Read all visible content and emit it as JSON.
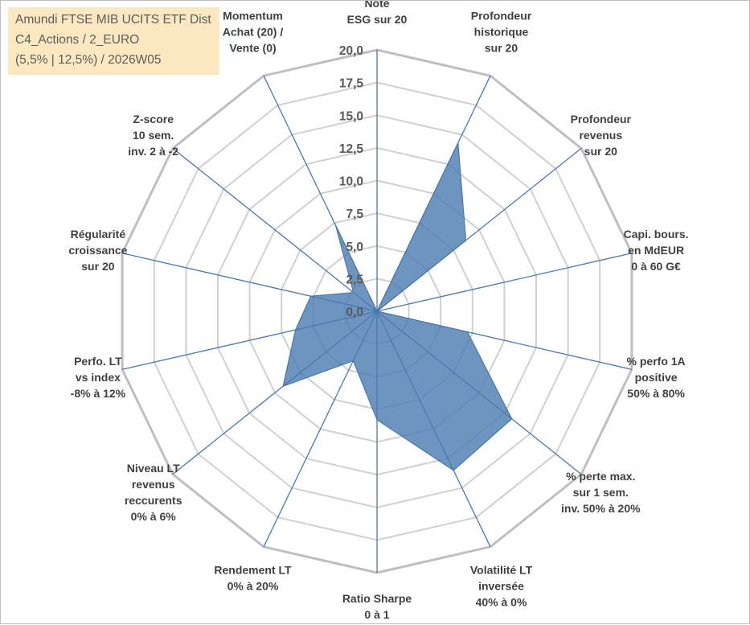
{
  "title_lines": [
    "Amundi FTSE MIB UCITS ETF Dist",
    "C4_Actions / 2_EURO",
    "(5,5% | 12,5%) / 2026W05"
  ],
  "chart_data": {
    "type": "radar",
    "title": "Amundi FTSE MIB UCITS ETF Dist",
    "rlim": [
      0,
      20
    ],
    "ticks": [
      "0,0",
      "2,5",
      "5,0",
      "7,5",
      "10,0",
      "12,5",
      "15,0",
      "17,5",
      "20,0"
    ],
    "tick_values": [
      0,
      2.5,
      5,
      7.5,
      10,
      12.5,
      15,
      17.5,
      20
    ],
    "grid": true,
    "series_color": "#4a79b0",
    "axes": [
      {
        "lines": [
          "Note",
          "ESG sur 20"
        ],
        "value": 0
      },
      {
        "lines": [
          "Profondeur",
          "historique",
          "sur 20"
        ],
        "value": 14.3
      },
      {
        "lines": [
          "Profondeur",
          "revenus",
          "sur 20"
        ],
        "value": 8.7
      },
      {
        "lines": [
          "Capi. bours.",
          "en MdEUR",
          "0 à 60 G€"
        ],
        "value": 0
      },
      {
        "lines": [
          "% perfo 1A",
          "positive",
          "50% à 80%"
        ],
        "value": 7.1
      },
      {
        "lines": [
          "% perte max.",
          "sur 1 sem.",
          "inv. 50% à 20%"
        ],
        "value": 13.2
      },
      {
        "lines": [
          "Volatilité LT",
          "inversée",
          "40% à 0%"
        ],
        "value": 13.5
      },
      {
        "lines": [
          "Ratio Sharpe",
          "0 à 1"
        ],
        "value": 8.3
      },
      {
        "lines": [
          "Rendement LT",
          "0% à 20%"
        ],
        "value": 4.2
      },
      {
        "lines": [
          "Niveau LT",
          "revenus",
          "reccurents",
          "0% à 6%"
        ],
        "value": 9.2
      },
      {
        "lines": [
          "Perfo. LT",
          "vs index",
          "-8% à 12%"
        ],
        "value": 6.4
      },
      {
        "lines": [
          "Régularité",
          "croissance",
          "sur 20"
        ],
        "value": 5.2
      },
      {
        "lines": [
          "Z-score",
          "10 sem.",
          "inv. 2 à -2"
        ],
        "value": 2.3
      },
      {
        "lines": [
          "Momentum",
          "Achat (20) /",
          "Vente (0)"
        ],
        "value": 7.3
      }
    ]
  }
}
